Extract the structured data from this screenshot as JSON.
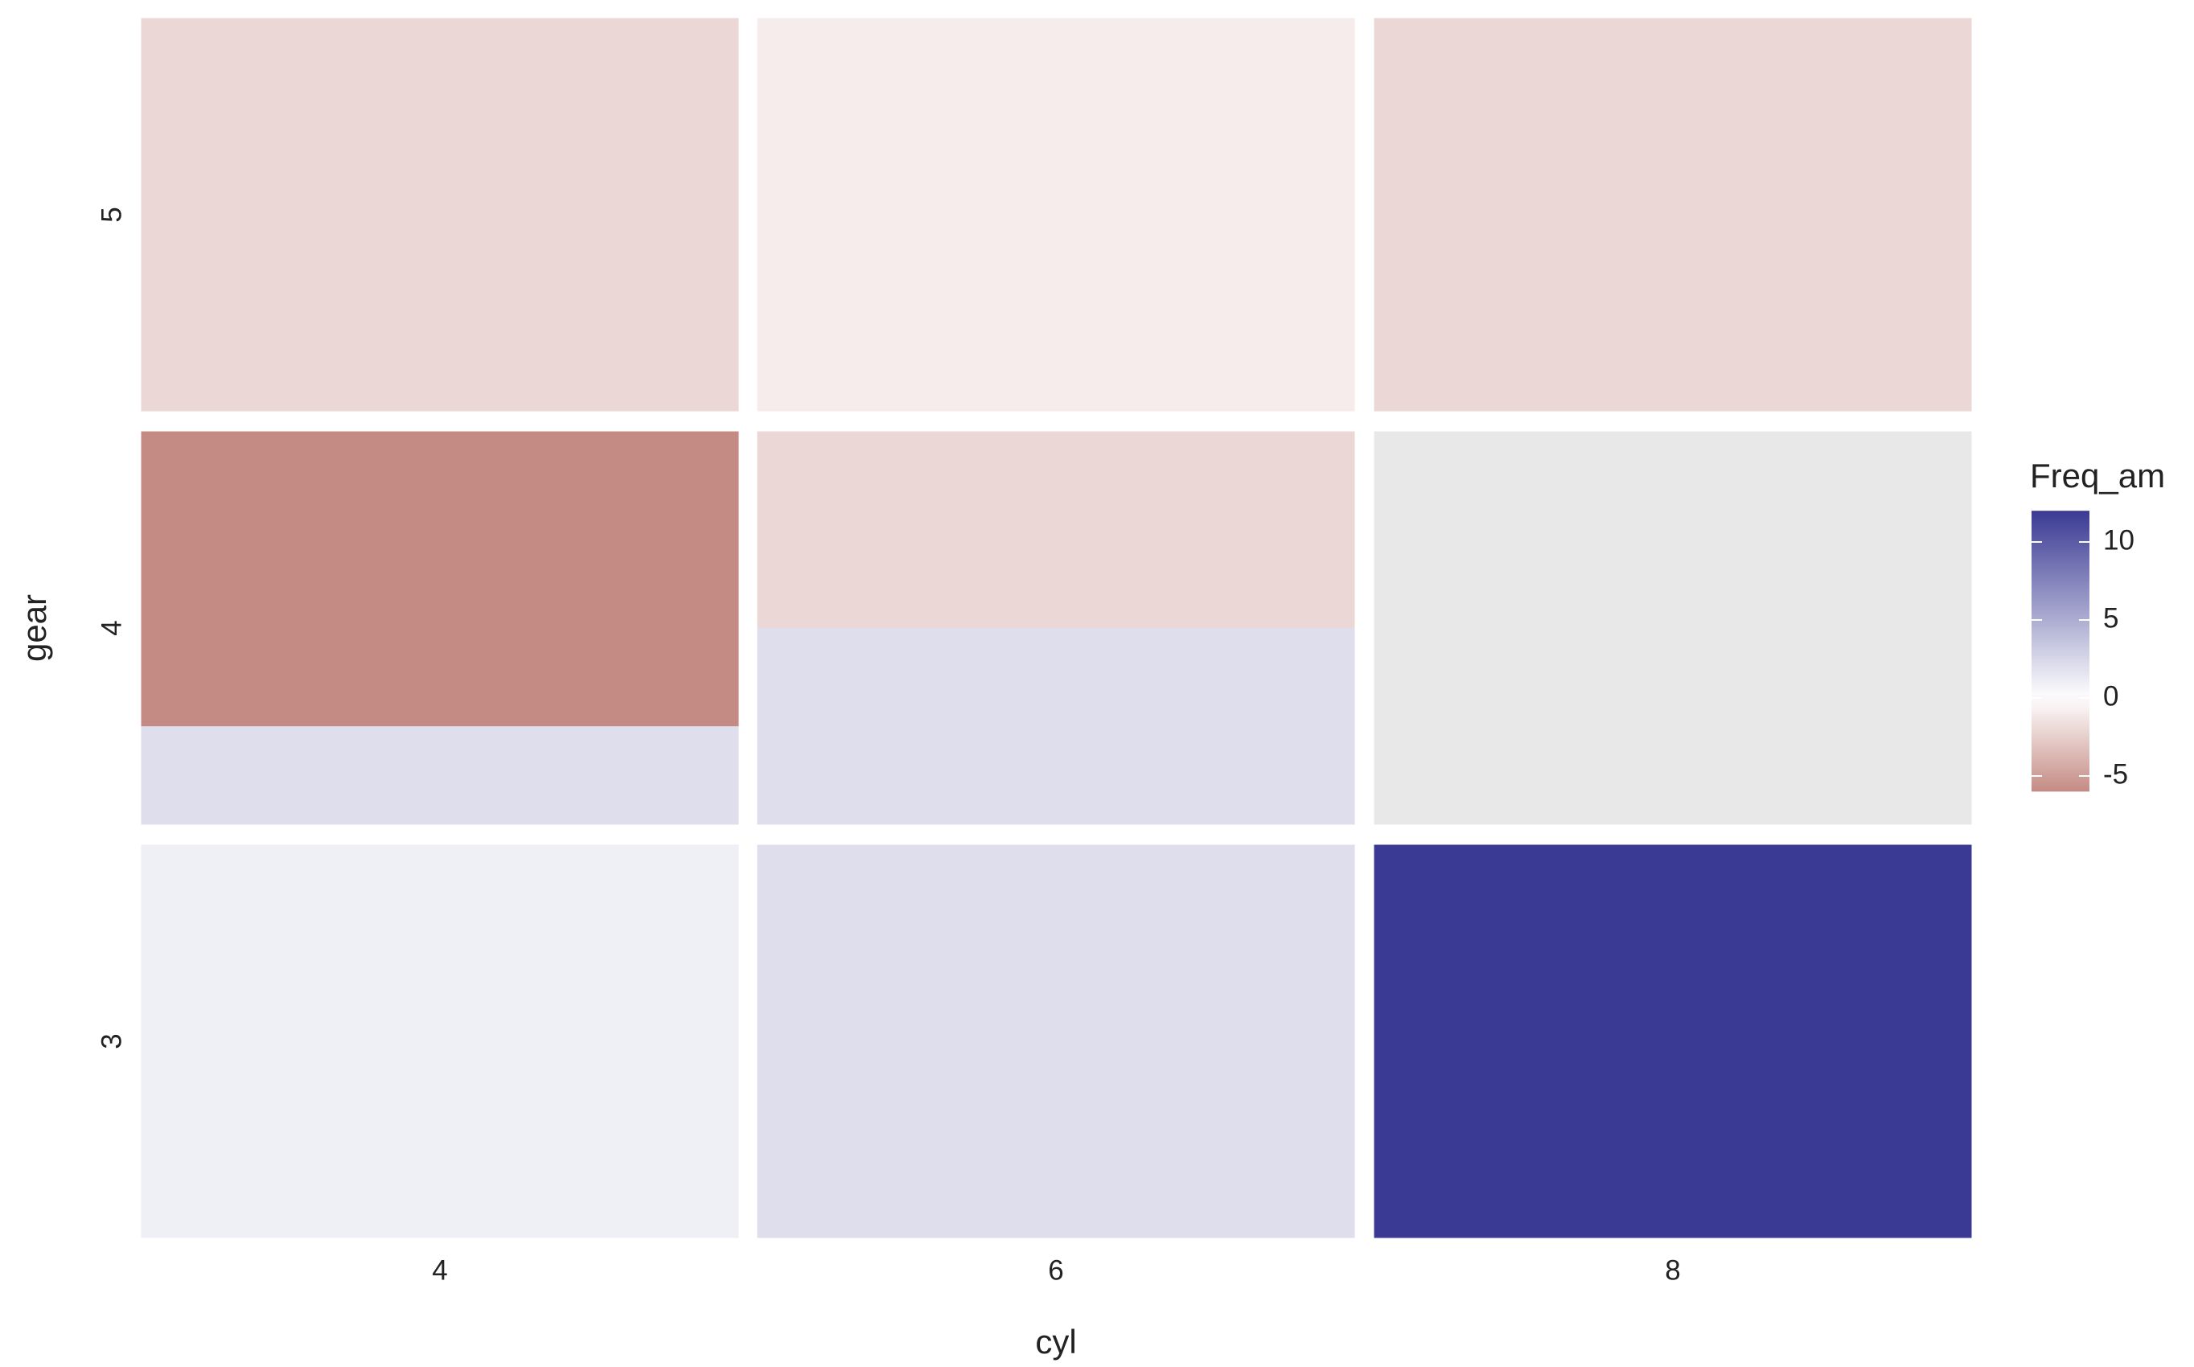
{
  "chart_data": {
    "type": "tile",
    "x_label": "cyl",
    "y_label": "gear",
    "x_categories": [
      "4",
      "6",
      "8"
    ],
    "y_categories": [
      "3",
      "4",
      "5"
    ],
    "cells": [
      {
        "x": "4",
        "y": "3",
        "segments": [
          1
        ]
      },
      {
        "x": "4",
        "y": "4",
        "segments": [
          2,
          -6
        ]
      },
      {
        "x": "4",
        "y": "5",
        "segments": [
          -2
        ]
      },
      {
        "x": "6",
        "y": "3",
        "segments": [
          2
        ]
      },
      {
        "x": "6",
        "y": "4",
        "segments": [
          2,
          -2
        ]
      },
      {
        "x": "6",
        "y": "5",
        "segments": [
          -1
        ]
      },
      {
        "x": "8",
        "y": "3",
        "segments": [
          12
        ]
      },
      {
        "x": "8",
        "y": "4",
        "segments": [
          null
        ]
      },
      {
        "x": "8",
        "y": "5",
        "segments": [
          -2
        ]
      }
    ],
    "legend_title": "Freq_am",
    "colorbar_lim": [
      -6,
      12
    ],
    "colorbar_ticks": [
      -5,
      0,
      5,
      10
    ],
    "colors": {
      "low": "#c48b84",
      "mid": "#ffffff",
      "high": "#3a3a94",
      "na": "#e8e8e8"
    }
  }
}
